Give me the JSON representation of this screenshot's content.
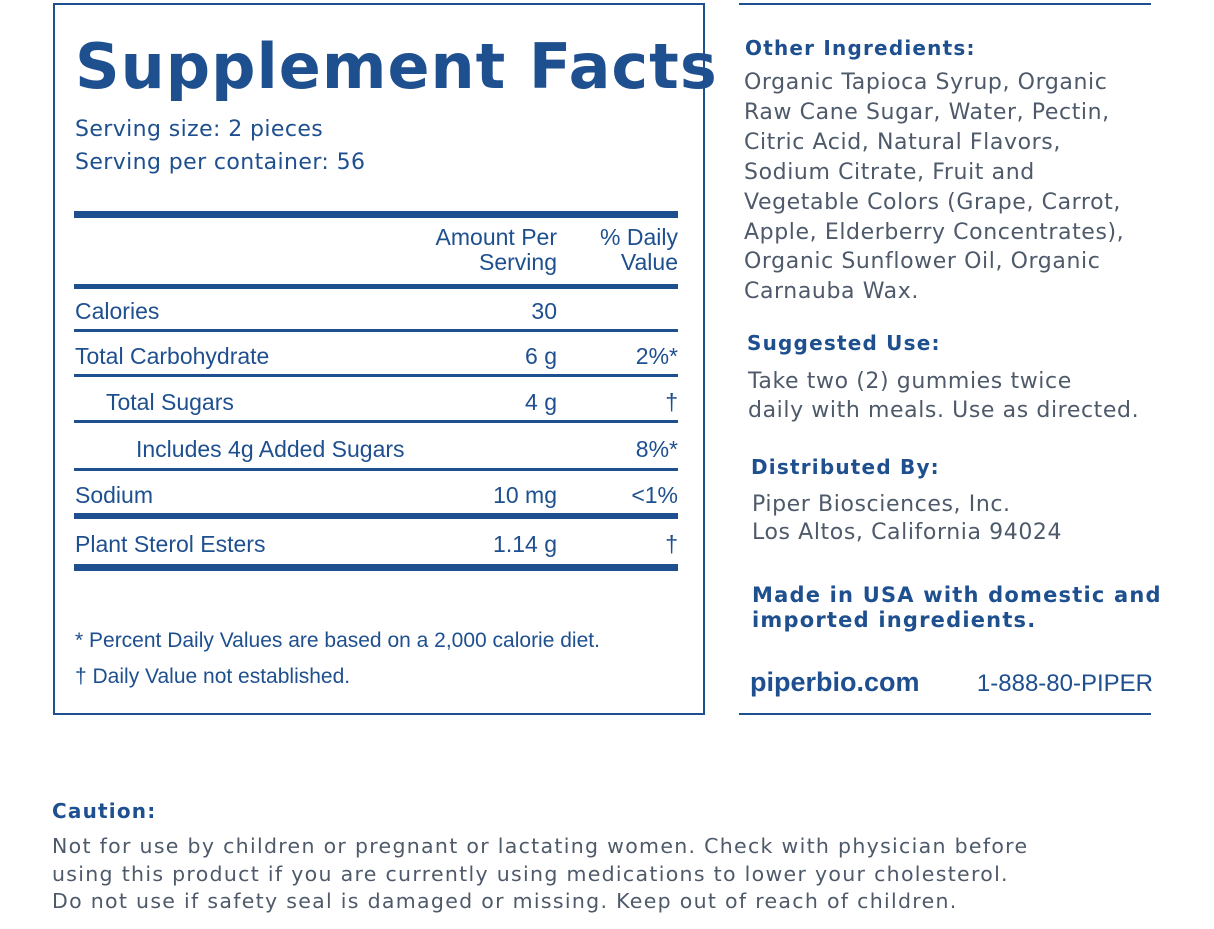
{
  "supplement_facts": {
    "title": "Supplement Facts",
    "serving_size": "Serving size: 2 pieces",
    "servings_per_container": "Serving per container: 56",
    "header": {
      "amount": [
        "Amount Per",
        "Serving"
      ],
      "daily_value": [
        "% Daily",
        "Value"
      ]
    },
    "rows": [
      {
        "name": "Calories",
        "amount": "30"
      },
      {
        "name": "Total Carbohydrate",
        "amount": "6 g",
        "daily_value": "2%*"
      },
      {
        "name": "Total Sugars",
        "amount": "4 g",
        "daily_value": "†"
      },
      {
        "name": "Includes 4g Added Sugars",
        "daily_value": "8%*"
      },
      {
        "name": "Sodium",
        "amount": "10 mg",
        "daily_value": "<1%"
      },
      {
        "name": "Plant Sterol Esters",
        "amount": "1.14 g",
        "daily_value": "†"
      }
    ],
    "footnotes": [
      "* Percent Daily Values are based on a 2,000 calorie diet.",
      "† Daily Value not established."
    ]
  },
  "other_ingredients": {
    "heading": "Other Ingredients:",
    "lines": [
      "Organic Tapioca Syrup, Organic",
      "Raw Cane Sugar, Water, Pectin,",
      "Citric Acid, Natural Flavors,",
      "Sodium Citrate, Fruit and",
      "Vegetable Colors (Grape, Carrot,",
      "Apple, Elderberry Concentrates),",
      "Organic Sunflower Oil, Organic",
      "Carnauba Wax."
    ]
  },
  "suggested_use": {
    "heading": "Suggested Use:",
    "lines": [
      "Take two (2) gummies twice",
      "daily with meals. Use as directed."
    ]
  },
  "distributed_by": {
    "heading": "Distributed By:",
    "lines": [
      "Piper Biosciences, Inc.",
      "Los Altos, California 94024"
    ]
  },
  "made_in": [
    "Made in USA with domestic and",
    "imported ingredients."
  ],
  "contact": {
    "website": "piperbio.com",
    "phone": "1-888-80-PIPER"
  },
  "caution": {
    "heading": "Caution:",
    "lines": [
      "Not for use by children or pregnant or lactating women. Check with physician before",
      "using this product if you are currently using medications to lower your cholesterol.",
      "Do not use if safety seal is damaged or missing. Keep out of reach of children."
    ]
  }
}
